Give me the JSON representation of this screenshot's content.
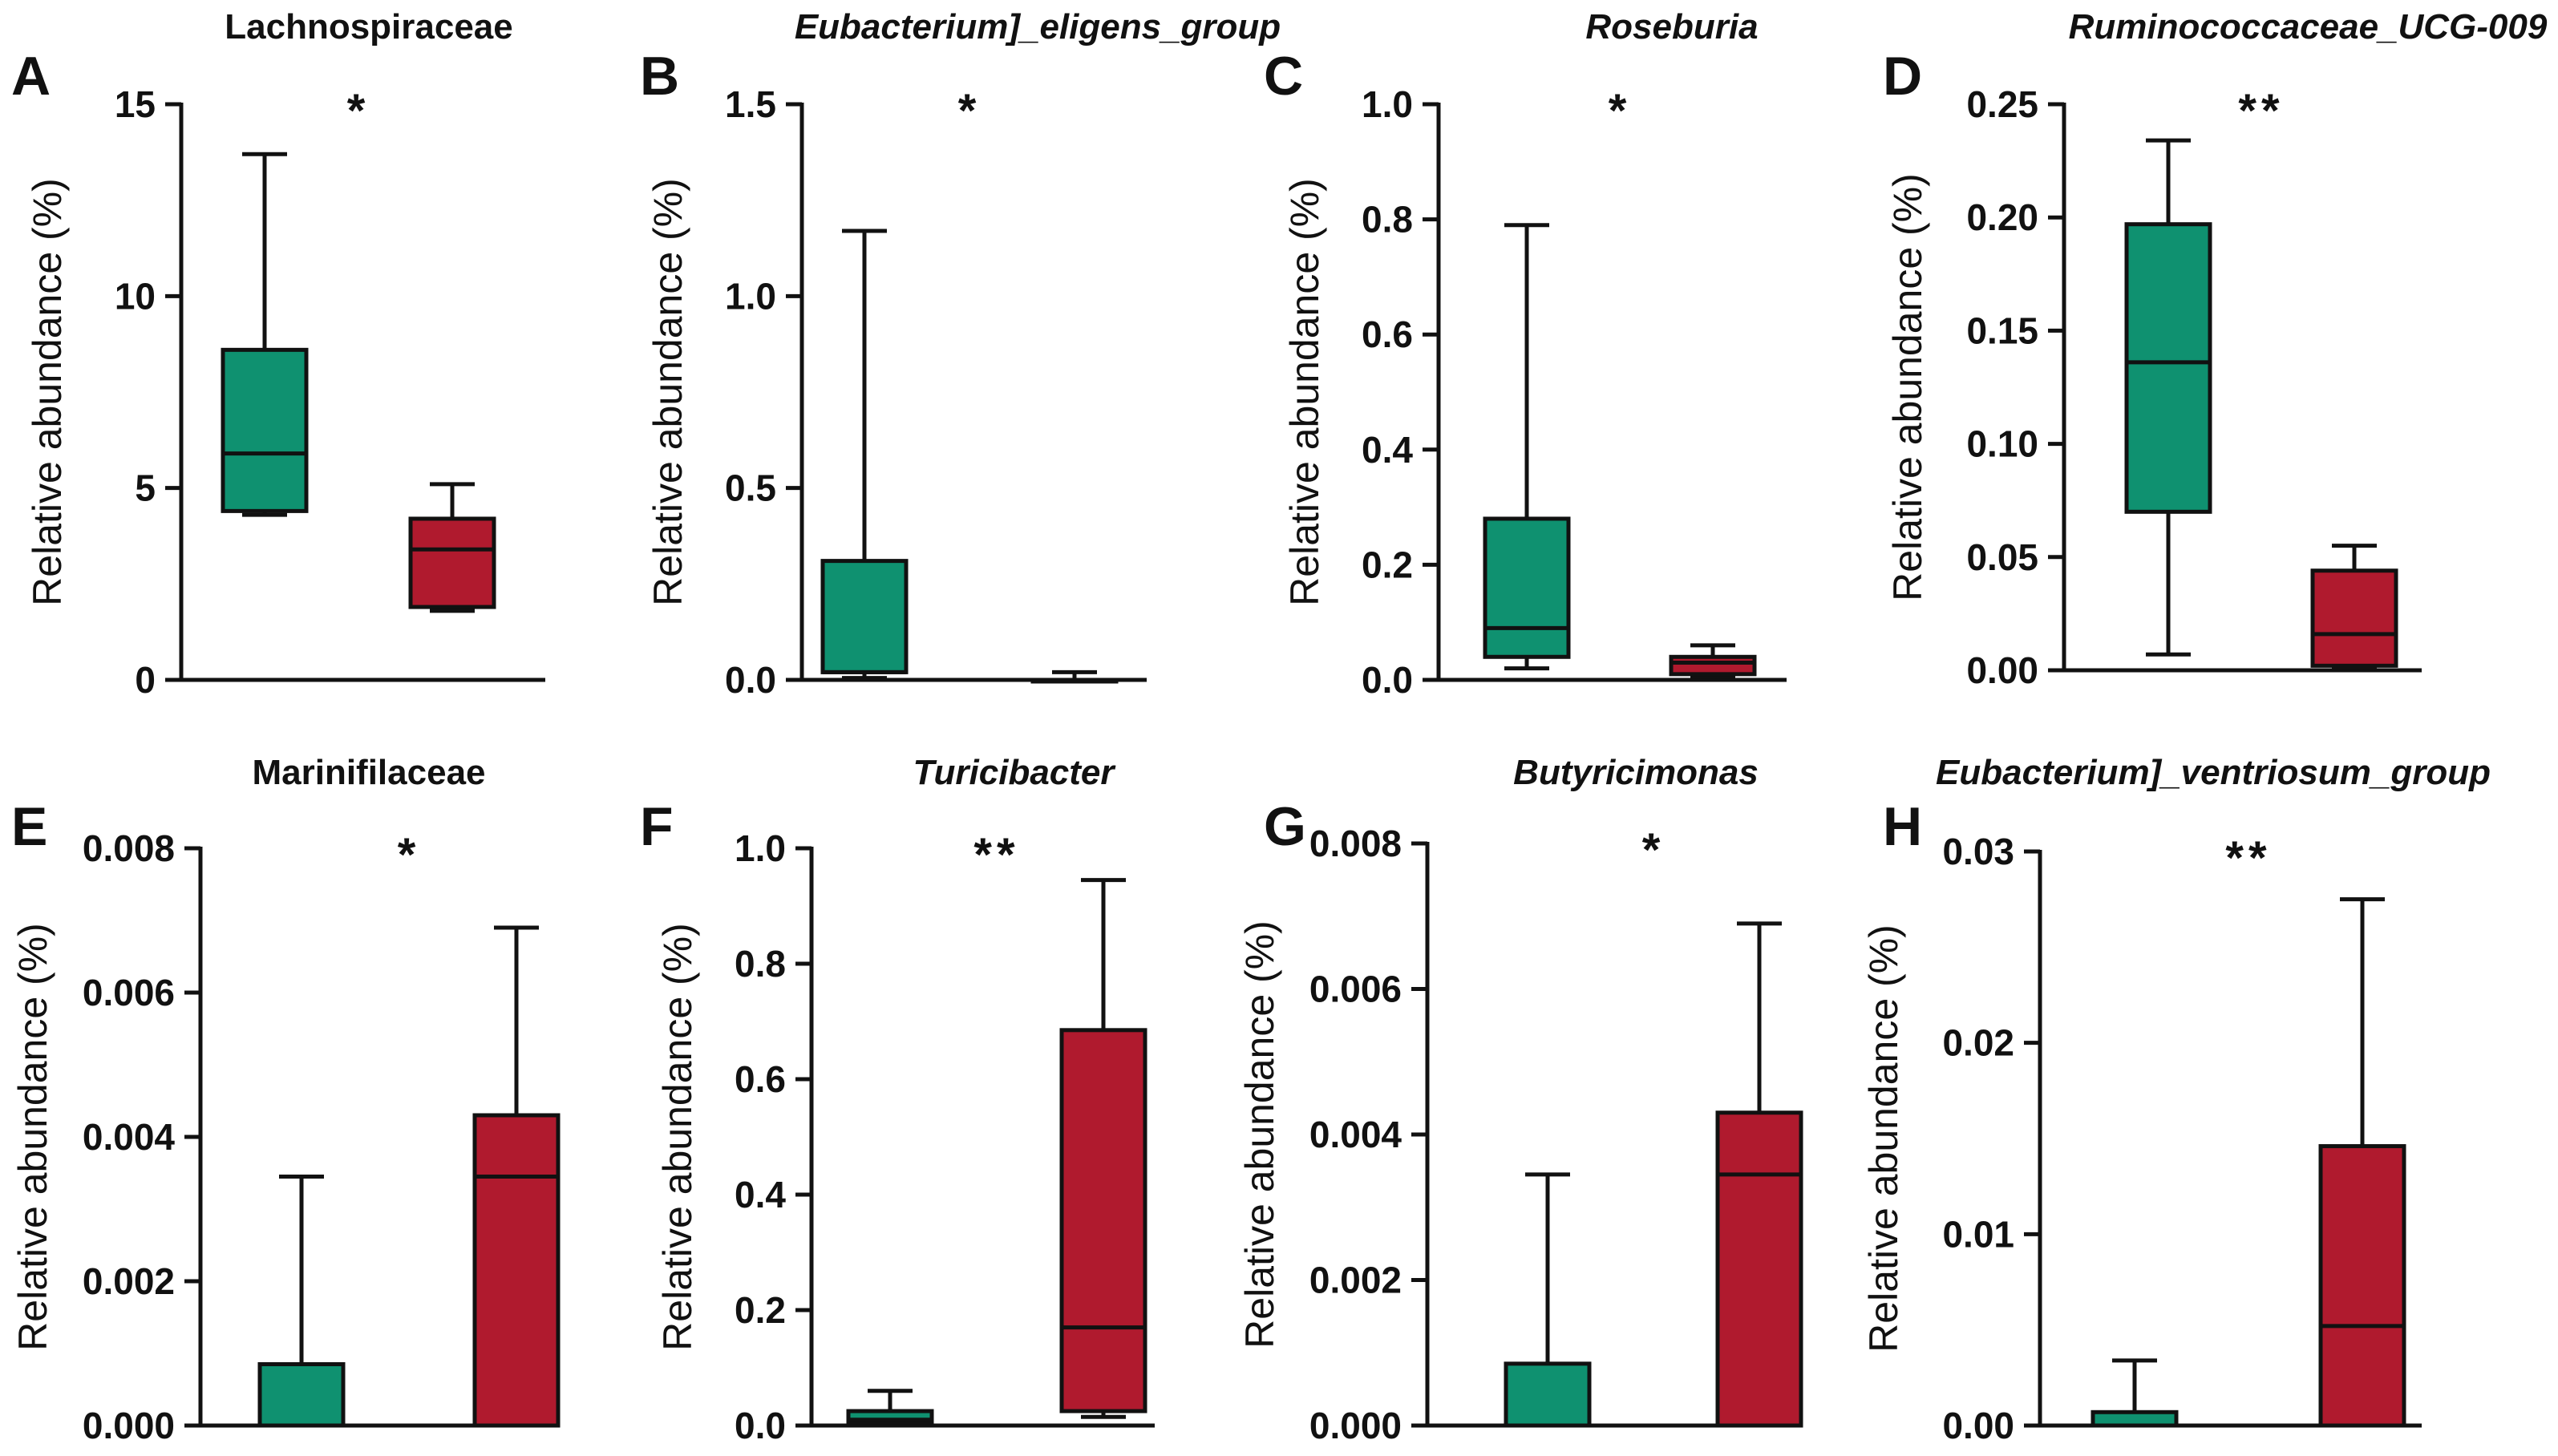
{
  "chart_data": [
    {
      "type": "box",
      "panel_letter": "A",
      "title": "Lachnospiraceae",
      "title_italic": false,
      "ylabel": "Relative abundance (%)",
      "ylim": [
        0,
        15
      ],
      "yticks": [
        0,
        5,
        10,
        15
      ],
      "ytick_labels": [
        "0",
        "5",
        "10",
        "15"
      ],
      "significance": "*",
      "groups": [
        {
          "color": "#0f9170",
          "min": 4.3,
          "q1": 4.4,
          "median": 5.9,
          "q3": 8.6,
          "max": 13.7
        },
        {
          "color": "#b01a2e",
          "min": 1.8,
          "q1": 1.9,
          "median": 3.4,
          "q3": 4.2,
          "max": 5.1
        }
      ]
    },
    {
      "type": "box",
      "panel_letter": "B",
      "title": "Eubacterium]_eligens_group",
      "title_italic": true,
      "ylabel": "Relative abundance (%)",
      "ylim": [
        0,
        1.5
      ],
      "yticks": [
        0,
        0.5,
        1.0,
        1.5
      ],
      "ytick_labels": [
        "0.0",
        "0.5",
        "1.0",
        "1.5"
      ],
      "significance": "*",
      "groups": [
        {
          "color": "#0f9170",
          "min": 0.005,
          "q1": 0.02,
          "median": 0.02,
          "q3": 0.31,
          "max": 1.17
        },
        {
          "color": "#b01a2e",
          "min": 0.0,
          "q1": 0.0,
          "median": 0.0,
          "q3": 0.0,
          "max": 0.02
        }
      ]
    },
    {
      "type": "box",
      "panel_letter": "C",
      "title": "Roseburia",
      "title_italic": true,
      "ylabel": "Relative abundance (%)",
      "ylim": [
        0,
        1.0
      ],
      "yticks": [
        0,
        0.2,
        0.4,
        0.6,
        0.8,
        1.0
      ],
      "ytick_labels": [
        "0.0",
        "0.2",
        "0.4",
        "0.6",
        "0.8",
        "1.0"
      ],
      "significance": "*",
      "groups": [
        {
          "color": "#0f9170",
          "min": 0.02,
          "q1": 0.04,
          "median": 0.09,
          "q3": 0.28,
          "max": 0.79
        },
        {
          "color": "#b01a2e",
          "min": 0.005,
          "q1": 0.01,
          "median": 0.03,
          "q3": 0.04,
          "max": 0.06
        }
      ]
    },
    {
      "type": "box",
      "panel_letter": "D",
      "title": "Ruminococcaceae_UCG-009",
      "title_italic": true,
      "ylabel": "Relative abundance (%)",
      "ylim": [
        0,
        0.25
      ],
      "yticks": [
        0,
        0.05,
        0.1,
        0.15,
        0.2,
        0.25
      ],
      "ytick_labels": [
        "0.00",
        "0.05",
        "0.10",
        "0.15",
        "0.20",
        "0.25"
      ],
      "significance": "**",
      "groups": [
        {
          "color": "#0f9170",
          "min": 0.007,
          "q1": 0.07,
          "median": 0.136,
          "q3": 0.197,
          "max": 0.234
        },
        {
          "color": "#b01a2e",
          "min": 0.001,
          "q1": 0.002,
          "median": 0.016,
          "q3": 0.044,
          "max": 0.055
        }
      ]
    },
    {
      "type": "box",
      "panel_letter": "E",
      "title": "Marinifilaceae",
      "title_italic": false,
      "ylabel": "Relative abundance (%)",
      "ylim": [
        0,
        0.008
      ],
      "yticks": [
        0,
        0.002,
        0.004,
        0.006,
        0.008
      ],
      "ytick_labels": [
        "0.000",
        "0.002",
        "0.004",
        "0.006",
        "0.008"
      ],
      "significance": "*",
      "groups": [
        {
          "color": "#0f9170",
          "min": 0.0,
          "q1": 0.0,
          "median": 0.0,
          "q3": 0.00085,
          "max": 0.00345
        },
        {
          "color": "#b01a2e",
          "min": 0.0,
          "q1": 0.0,
          "median": 0.00345,
          "q3": 0.0043,
          "max": 0.0069
        }
      ]
    },
    {
      "type": "box",
      "panel_letter": "F",
      "title": "Turicibacter",
      "title_italic": true,
      "ylabel": "Relative abundance (%)",
      "ylim": [
        0,
        1.0
      ],
      "yticks": [
        0,
        0.2,
        0.4,
        0.6,
        0.8,
        1.0
      ],
      "ytick_labels": [
        "0.0",
        "0.2",
        "0.4",
        "0.6",
        "0.8",
        "1.0"
      ],
      "significance": "**",
      "groups": [
        {
          "color": "#0f9170",
          "min": 0.0,
          "q1": 0.005,
          "median": 0.01,
          "q3": 0.025,
          "max": 0.06
        },
        {
          "color": "#b01a2e",
          "min": 0.015,
          "q1": 0.025,
          "median": 0.17,
          "q3": 0.685,
          "max": 0.945
        }
      ]
    },
    {
      "type": "box",
      "panel_letter": "G",
      "title": "Butyricimonas",
      "title_italic": true,
      "ylabel": "Relative abundance (%)",
      "ylim": [
        0,
        0.008
      ],
      "yticks": [
        0,
        0.002,
        0.004,
        0.006,
        0.008
      ],
      "ytick_labels": [
        "0.000",
        "0.002",
        "0.004",
        "0.006",
        "0.008"
      ],
      "significance": "*",
      "groups": [
        {
          "color": "#0f9170",
          "min": 0.0,
          "q1": 0.0,
          "median": 0.0,
          "q3": 0.00085,
          "max": 0.00345
        },
        {
          "color": "#b01a2e",
          "min": 0.0,
          "q1": 0.0,
          "median": 0.00345,
          "q3": 0.0043,
          "max": 0.0069
        }
      ]
    },
    {
      "type": "box",
      "panel_letter": "H",
      "title": "Eubacterium]_ventriosum_group",
      "title_italic": true,
      "ylabel": "Relative abundance (%)",
      "ylim": [
        0,
        0.03
      ],
      "yticks": [
        0,
        0.01,
        0.02,
        0.03
      ],
      "ytick_labels": [
        "0.00",
        "0.01",
        "0.02",
        "0.03"
      ],
      "significance": "**",
      "groups": [
        {
          "color": "#0f9170",
          "min": 0.0,
          "q1": 0.0,
          "median": 0.0,
          "q3": 0.0007,
          "max": 0.0034
        },
        {
          "color": "#b01a2e",
          "min": 0.0,
          "q1": 0.0,
          "median": 0.0052,
          "q3": 0.0146,
          "max": 0.0275
        }
      ]
    }
  ]
}
